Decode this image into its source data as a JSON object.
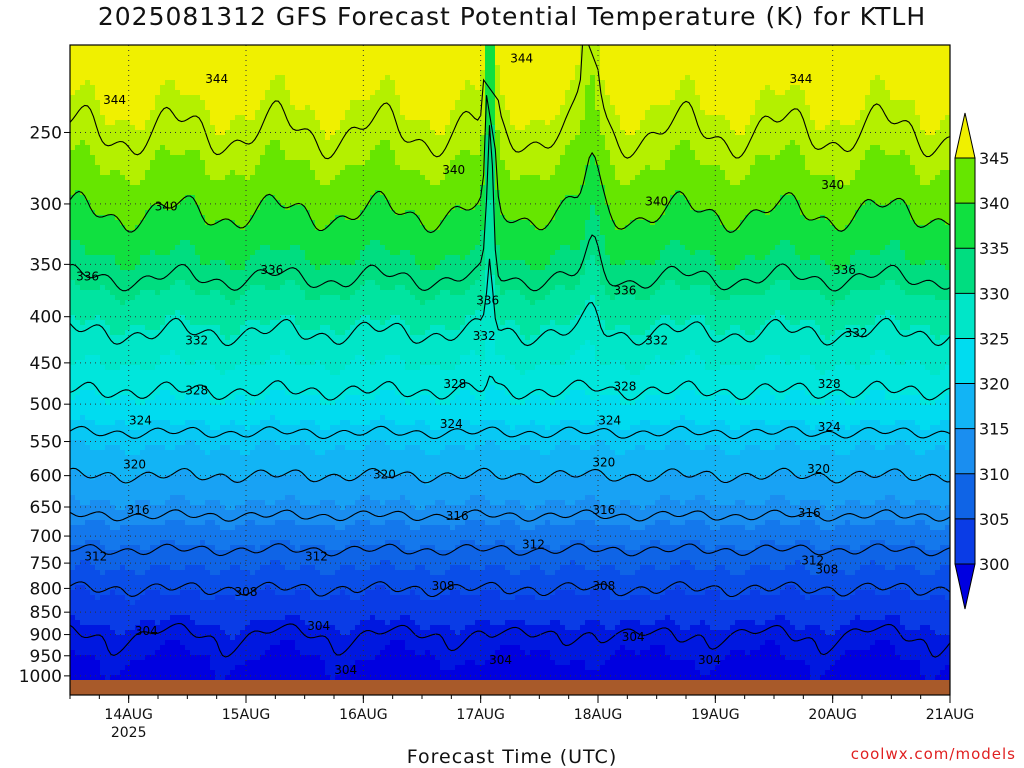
{
  "title": "2025081312 GFS Forecast Potential Temperature (K) for KTLH",
  "credit": "coolwx.com/models",
  "chart_data": {
    "type": "heatmap",
    "title": "2025081312 GFS Forecast Potential Temperature (K) for KTLH",
    "xlabel": "Forecast Time (UTC)",
    "ylabel": "",
    "x_ticks": [
      {
        "day": 14,
        "label": "14AUG",
        "sublabel": "2025"
      },
      {
        "day": 15,
        "label": "15AUG",
        "sublabel": ""
      },
      {
        "day": 16,
        "label": "16AUG",
        "sublabel": ""
      },
      {
        "day": 17,
        "label": "17AUG",
        "sublabel": ""
      },
      {
        "day": 18,
        "label": "18AUG",
        "sublabel": ""
      },
      {
        "day": 19,
        "label": "19AUG",
        "sublabel": ""
      },
      {
        "day": 20,
        "label": "20AUG",
        "sublabel": ""
      },
      {
        "day": 21,
        "label": "21AUG",
        "sublabel": ""
      }
    ],
    "xlim": [
      13.5,
      21.0
    ],
    "y_ticks": [
      250,
      300,
      350,
      400,
      450,
      500,
      550,
      600,
      650,
      700,
      750,
      800,
      850,
      900,
      950,
      1000
    ],
    "ylim": [
      200,
      1050
    ],
    "y_scale": "log-pressure (reversed)",
    "grid": true,
    "colorbar": {
      "levels": [
        300,
        305,
        310,
        315,
        320,
        325,
        330,
        335,
        340,
        345
      ],
      "colors": [
        "#0000dd",
        "#0a3ce6",
        "#0f64e6",
        "#1a8ef0",
        "#12b4f5",
        "#00dcf0",
        "#00e6c8",
        "#00dd80",
        "#10e040",
        "#66e600",
        "#b4f000",
        "#f0f000"
      ],
      "extend": "both"
    },
    "contour_levels": [
      304,
      308,
      312,
      316,
      320,
      324,
      328,
      332,
      336,
      340,
      344
    ],
    "contour_labels": [
      {
        "value": "344",
        "day": 13.88,
        "p": 230
      },
      {
        "value": "344",
        "day": 14.75,
        "p": 218
      },
      {
        "value": "344",
        "day": 17.35,
        "p": 207
      },
      {
        "value": "344",
        "day": 19.73,
        "p": 218
      },
      {
        "value": "340",
        "day": 14.32,
        "p": 302
      },
      {
        "value": "340",
        "day": 16.77,
        "p": 275
      },
      {
        "value": "340",
        "day": 18.5,
        "p": 298
      },
      {
        "value": "340",
        "day": 20.0,
        "p": 286
      },
      {
        "value": "336",
        "day": 13.65,
        "p": 361
      },
      {
        "value": "336",
        "day": 15.22,
        "p": 355
      },
      {
        "value": "336",
        "day": 17.06,
        "p": 384
      },
      {
        "value": "336",
        "day": 18.23,
        "p": 374
      },
      {
        "value": "336",
        "day": 20.1,
        "p": 355
      },
      {
        "value": "332",
        "day": 14.58,
        "p": 425
      },
      {
        "value": "332",
        "day": 17.03,
        "p": 420
      },
      {
        "value": "332",
        "day": 18.5,
        "p": 425
      },
      {
        "value": "332",
        "day": 20.2,
        "p": 417
      },
      {
        "value": "328",
        "day": 14.58,
        "p": 483
      },
      {
        "value": "328",
        "day": 16.78,
        "p": 475
      },
      {
        "value": "328",
        "day": 18.23,
        "p": 478
      },
      {
        "value": "328",
        "day": 19.97,
        "p": 475
      },
      {
        "value": "324",
        "day": 14.1,
        "p": 521
      },
      {
        "value": "324",
        "day": 16.75,
        "p": 526
      },
      {
        "value": "324",
        "day": 18.1,
        "p": 521
      },
      {
        "value": "324",
        "day": 19.97,
        "p": 530
      },
      {
        "value": "320",
        "day": 14.05,
        "p": 583
      },
      {
        "value": "320",
        "day": 16.18,
        "p": 598
      },
      {
        "value": "320",
        "day": 18.05,
        "p": 580
      },
      {
        "value": "320",
        "day": 19.88,
        "p": 590
      },
      {
        "value": "316",
        "day": 14.08,
        "p": 655
      },
      {
        "value": "316",
        "day": 16.8,
        "p": 665
      },
      {
        "value": "316",
        "day": 18.05,
        "p": 655
      },
      {
        "value": "316",
        "day": 19.8,
        "p": 660
      },
      {
        "value": "312",
        "day": 13.72,
        "p": 737
      },
      {
        "value": "312",
        "day": 15.6,
        "p": 737
      },
      {
        "value": "312",
        "day": 17.45,
        "p": 715
      },
      {
        "value": "312",
        "day": 19.83,
        "p": 745
      },
      {
        "value": "308",
        "day": 15.0,
        "p": 807
      },
      {
        "value": "308",
        "day": 16.68,
        "p": 795
      },
      {
        "value": "308",
        "day": 18.05,
        "p": 795
      },
      {
        "value": "308",
        "day": 19.95,
        "p": 762
      },
      {
        "value": "304",
        "day": 14.15,
        "p": 892
      },
      {
        "value": "304",
        "day": 15.62,
        "p": 880
      },
      {
        "value": "304",
        "day": 15.85,
        "p": 985
      },
      {
        "value": "304",
        "day": 17.17,
        "p": 960
      },
      {
        "value": "304",
        "day": 18.3,
        "p": 906
      },
      {
        "value": "304",
        "day": 18.95,
        "p": 960
      }
    ]
  }
}
